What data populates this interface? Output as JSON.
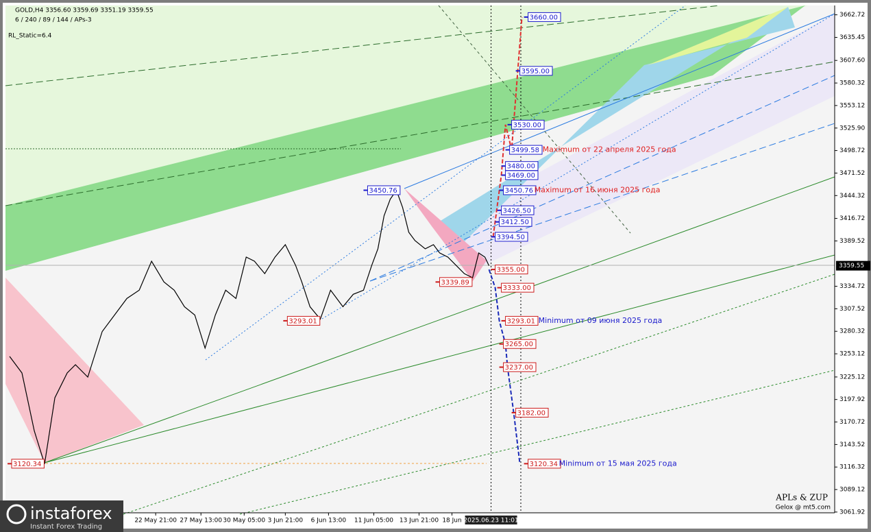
{
  "chart_data": {
    "type": "line",
    "header": "GOLD,H4  3356.60 3359.69 3351.19 3359.55",
    "indicator": "6 / 240 / 89 / 144 / APs-3",
    "static": "RL_Static=6.4",
    "color": "#000000",
    "x": [
      2,
      8,
      14,
      19,
      24,
      30,
      34,
      40,
      47,
      53,
      59,
      65,
      71,
      77,
      82,
      87,
      92,
      97,
      102,
      107,
      112,
      117,
      121,
      126,
      131,
      136,
      141,
      144,
      148,
      153,
      158,
      164,
      169,
      174,
      178,
      181,
      184,
      187,
      190,
      193,
      196,
      199,
      204,
      208,
      211,
      215,
      219,
      223,
      227,
      230,
      233,
      235
    ],
    "values": [
      3250,
      3230,
      3160,
      3120,
      3200,
      3230,
      3240,
      3225,
      3280,
      3300,
      3320,
      3330,
      3365,
      3340,
      3330,
      3310,
      3300,
      3260,
      3300,
      3330,
      3320,
      3370,
      3365,
      3350,
      3370,
      3385,
      3360,
      3340,
      3310,
      3295,
      3330,
      3310,
      3325,
      3330,
      3360,
      3380,
      3420,
      3440,
      3450.76,
      3430,
      3400,
      3390,
      3380,
      3385,
      3375,
      3370,
      3360,
      3350,
      3345,
      3375,
      3370,
      3359.55
    ],
    "xlim": [
      0,
      403
    ],
    "ylim": [
      3061,
      3674
    ],
    "yticks": [
      3662.72,
      3635.45,
      {
        "value": 3607.6,
        "label": "3607.60"
      },
      3580.32,
      3553.12,
      {
        "value": 3525.9,
        "label": "3525.90"
      },
      3498.72,
      3471.52,
      3444.32,
      3416.72,
      3389.52,
      3334.72,
      3307.52,
      3280.32,
      3253.12,
      3225.12,
      3197.92,
      3170.72,
      3143.52,
      3116.32,
      3089.12,
      3061.92
    ],
    "xticks": [
      {
        "value": 73,
        "label": "22 May 21:00"
      },
      {
        "value": 95,
        "label": "27 May 13:00"
      },
      {
        "value": 116,
        "label": "30 May 05:00"
      },
      {
        "value": 136,
        "label": "3 Jun 21:00"
      },
      {
        "value": 157,
        "label": "6 Jun 13:00"
      },
      {
        "value": 179,
        "label": "11 Jun 05:00"
      },
      {
        "value": 201,
        "label": "13 Jun 21:00"
      },
      {
        "value": 217,
        "label": "18 Jun"
      }
    ],
    "cursor_time": {
      "value": 236,
      "label": "2025.06.23 11:01"
    },
    "current_price": 3359.55,
    "forecast_up": {
      "color": "#e03030",
      "x": [
        237,
        241,
        243,
        246,
        251
      ],
      "values": [
        3394.5,
        3469,
        3530,
        3499.58,
        3660
      ]
    },
    "forecast_down": {
      "color": "#1a2ab8",
      "x": [
        235,
        238,
        240,
        243,
        244,
        247,
        250
      ],
      "values": [
        3355,
        3333,
        3293.01,
        3265,
        3237,
        3182,
        3120.34
      ]
    },
    "levels": [
      {
        "value": 3660,
        "label": "3660.00",
        "x": 254,
        "color": "#1a1acc"
      },
      {
        "value": 3595,
        "label": "3595.00",
        "x": 250,
        "color": "#1a1acc"
      },
      {
        "value": 3530,
        "label": "3530.00",
        "x": 246,
        "color": "#1a1acc"
      },
      {
        "value": 3499.58,
        "label": "3499.58",
        "x": 245,
        "color": "#1a1acc"
      },
      {
        "value": 3480,
        "label": "3480.00",
        "x": 243,
        "color": "#1a1acc"
      },
      {
        "value": 3469,
        "label": "3469.00",
        "x": 243,
        "color": "#1a1acc"
      },
      {
        "value": 3450.76,
        "label": "3450.76",
        "x": 242,
        "color": "#1a1acc"
      },
      {
        "value": 3426.5,
        "label": "3426.50",
        "x": 241,
        "color": "#1a1acc"
      },
      {
        "value": 3412.5,
        "label": "3412.50",
        "x": 240,
        "color": "#1a1acc"
      },
      {
        "value": 3394.5,
        "label": "3394.50",
        "x": 238,
        "color": "#1a1acc"
      },
      {
        "value": 3355,
        "label": "3355.00",
        "x": 238,
        "color": "#cc1a1a"
      },
      {
        "value": 3333,
        "label": "3333.00",
        "x": 241,
        "color": "#cc1a1a"
      },
      {
        "value": 3293.01,
        "label": "3293.01",
        "x": 243,
        "color": "#cc1a1a"
      },
      {
        "value": 3265,
        "label": "3265.00",
        "x": 242,
        "color": "#cc1a1a"
      },
      {
        "value": 3237,
        "label": "3237.00",
        "x": 242,
        "color": "#cc1a1a"
      },
      {
        "value": 3182,
        "label": "3182.00",
        "x": 248,
        "color": "#cc1a1a"
      },
      {
        "value": 3120.34,
        "label": "3120.34",
        "x": 254,
        "color": "#cc1a1a"
      },
      {
        "value": 3450.76,
        "label": "3450.76",
        "x": 176,
        "color": "#1a1acc"
      },
      {
        "value": 3293.01,
        "label": "3293.01",
        "x": 137,
        "color": "#cc1a1a"
      },
      {
        "value": 3339.89,
        "label": "3339.89",
        "x": 211,
        "color": "#cc1a1a"
      },
      {
        "value": 3120.34,
        "label": "3120.34",
        "x": 3,
        "color": "#cc1a1a"
      }
    ],
    "annotations": [
      {
        "text": "Maximum от 22 апреля 2025 года",
        "x": 261,
        "y": 3499.58,
        "color": "#e02020"
      },
      {
        "text": "Maximum от 16 июня 2025 года",
        "x": 257,
        "y": 3450.76,
        "color": "#e02020"
      },
      {
        "text": "Minimum от 09 июня 2025 года",
        "x": 259,
        "y": 3293.01,
        "color": "#1a1acc"
      },
      {
        "text": "Minimum от 15 мая 2025 года",
        "x": 269,
        "y": 3120.34,
        "color": "#1a1acc"
      }
    ],
    "credit": "APLs & ZUP",
    "credit_sub": "Gelox @ mt5.com",
    "logo": "instaforex",
    "logo_sub": "Instant Forex Trading"
  }
}
